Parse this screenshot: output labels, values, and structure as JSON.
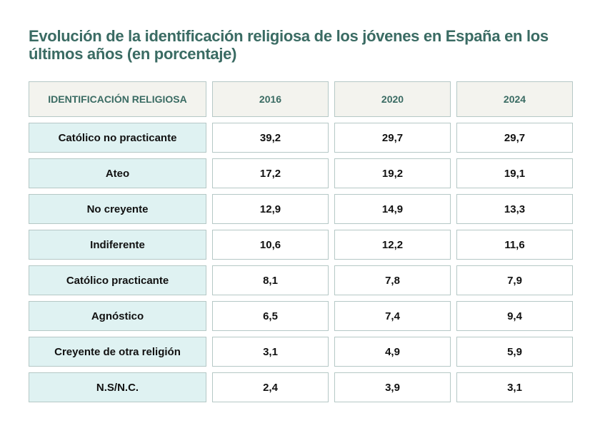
{
  "title": "Evolución de la identificación religiosa de los jóvenes en España en los últimos años (en porcentaje)",
  "colors": {
    "title": "#3a6b63",
    "header_bg": "#f3f3ee",
    "label_bg": "#dff2f2",
    "border": "#b5c8c6"
  },
  "table": {
    "headers": [
      "IDENTIFICACIÓN RELIGIOSA",
      "2016",
      "2020",
      "2024"
    ],
    "rows": [
      {
        "label": "Católico no practicante",
        "values": [
          "39,2",
          "29,7",
          "29,7"
        ]
      },
      {
        "label": "Ateo",
        "values": [
          "17,2",
          "19,2",
          "19,1"
        ]
      },
      {
        "label": "No creyente",
        "values": [
          "12,9",
          "14,9",
          "13,3"
        ]
      },
      {
        "label": "Indiferente",
        "values": [
          "10,6",
          "12,2",
          "11,6"
        ]
      },
      {
        "label": "Católico practicante",
        "values": [
          "8,1",
          "7,8",
          "7,9"
        ]
      },
      {
        "label": "Agnóstico",
        "values": [
          "6,5",
          "7,4",
          "9,4"
        ]
      },
      {
        "label": "Creyente de otra religión",
        "values": [
          "3,1",
          "4,9",
          "5,9"
        ]
      },
      {
        "label": "N.S/N.C.",
        "values": [
          "2,4",
          "3,9",
          "3,1"
        ]
      }
    ]
  }
}
